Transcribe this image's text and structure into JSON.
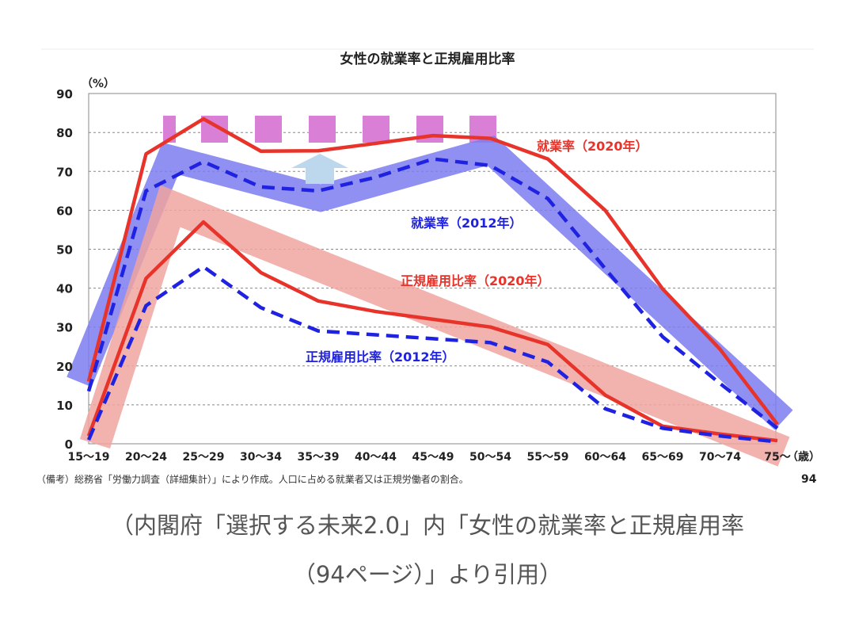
{
  "chart_data": {
    "type": "line",
    "title": "女性の就業率と正規雇用比率",
    "ylabel": "（%）",
    "xlabel": "（歳）",
    "ylim": [
      0,
      90
    ],
    "yticks": [
      0,
      10,
      20,
      30,
      40,
      50,
      60,
      70,
      80,
      90
    ],
    "grid": true,
    "categories": [
      "15～19",
      "20～24",
      "25～29",
      "30～34",
      "35～39",
      "40～44",
      "45～49",
      "50～54",
      "55～59",
      "60～64",
      "65～69",
      "70～74",
      "75～"
    ],
    "series": [
      {
        "name": "就業率（2020年）",
        "color": "#e8332a",
        "style": "solid",
        "values": [
          16,
          74.5,
          83.5,
          75.2,
          75.3,
          77.2,
          79.2,
          78.5,
          73.2,
          60,
          39.8,
          24.3,
          5
        ]
      },
      {
        "name": "就業率（2012年）",
        "color": "#1f22e0",
        "style": "dashed",
        "values": [
          13.5,
          65,
          72.5,
          66,
          65,
          68.5,
          73.2,
          71.5,
          63,
          45,
          27.5,
          15.5,
          4
        ]
      },
      {
        "name": "正規雇用比率（2020年）",
        "color": "#e8332a",
        "style": "solid",
        "values": [
          2,
          42.5,
          57,
          44,
          36.7,
          34,
          32,
          30,
          25.5,
          12.5,
          4.5,
          2.5,
          0.8
        ]
      },
      {
        "name": "正規雇用比率（2012年）",
        "color": "#1f22e0",
        "style": "dashed",
        "values": [
          1,
          35.5,
          45.5,
          35,
          29,
          28,
          27,
          26,
          21,
          9,
          4,
          2,
          0.5
        ]
      }
    ],
    "band_color_blue": "#7b7cf0",
    "band_color_red": "#f0a4a0",
    "highlight_color": "#d97fd6",
    "arrow_color": "#bdd8ec",
    "footnote": "（備考）総務省「労働力調査（詳細集計）」により作成。人口に占める就業者又は正規労働者の割合。",
    "page_number": "94"
  },
  "caption": {
    "line1": "（内閣府「選択する未来2.0」内「女性の就業率と正規雇用率",
    "line2": "（94ページ）」より引用）"
  }
}
